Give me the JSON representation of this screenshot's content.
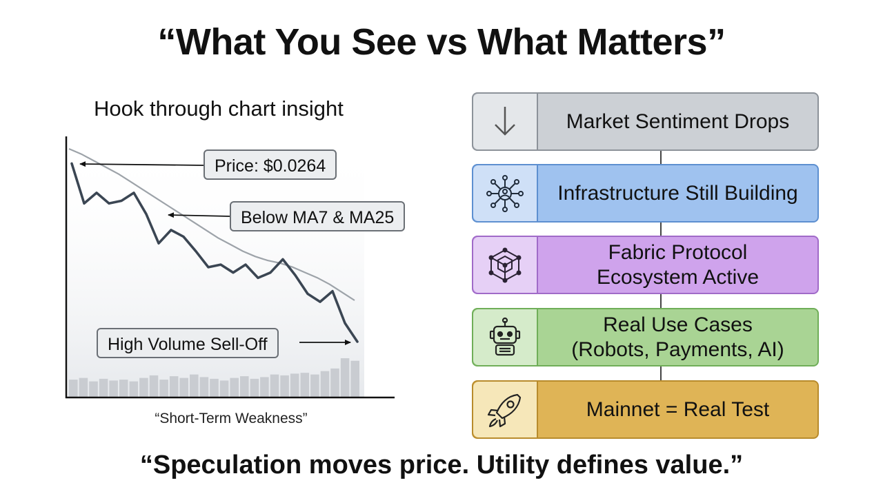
{
  "title": "“What You See vs What Matters”",
  "chart": {
    "heading": "Hook through chart insight",
    "caption": "“Short-Term Weakness”",
    "callouts": {
      "price": "Price: $0.0264",
      "ma": "Below MA7 & MA25",
      "volume": "High Volume Sell-Off"
    }
  },
  "chart_data": {
    "type": "line",
    "title": "",
    "xlabel": "",
    "ylabel": "",
    "series": [
      {
        "values": [
          0.036,
          0.033,
          0.0338,
          0.033,
          0.0332,
          0.0338,
          0.0322,
          0.03,
          0.031,
          0.0305,
          0.0294,
          0.0282,
          0.0284,
          0.0278,
          0.0284,
          0.0274,
          0.0278,
          0.0288,
          0.0276,
          0.0262,
          0.0256,
          0.0264,
          0.024,
          0.0226
        ]
      },
      {
        "values": [
          0.0368,
          0.0364,
          0.0359,
          0.0354,
          0.0349,
          0.0343,
          0.0337,
          0.0331,
          0.0325,
          0.0319,
          0.0313,
          0.0307,
          0.0301,
          0.0296,
          0.0291,
          0.0287,
          0.0284,
          0.0282,
          0.0279,
          0.0275,
          0.0271,
          0.0266,
          0.026,
          0.0254
        ]
      }
    ],
    "volume": [
      20,
      22,
      18,
      21,
      19,
      20,
      18,
      22,
      25,
      20,
      24,
      22,
      26,
      23,
      21,
      19,
      22,
      24,
      21,
      23,
      26,
      25,
      27,
      28,
      26,
      30,
      33,
      45,
      42
    ],
    "grid": false,
    "legend": "none"
  },
  "steps": [
    {
      "label": "Market Sentiment Drops",
      "icon": "arrow-down-icon",
      "fill": "#ccd0d5",
      "icon_fill": "#e4e7ea",
      "border": "#8c9299"
    },
    {
      "label": "Infrastructure Still Building",
      "icon": "network-icon",
      "fill": "#9fc2ef",
      "icon_fill": "#cfe0f7",
      "border": "#5d8fd0"
    },
    {
      "label_line1": "Fabric Protocol",
      "label_line2": "Ecosystem Active",
      "icon": "cube-network-icon",
      "fill": "#cfa3ec",
      "icon_fill": "#e6d0f6",
      "border": "#a06ac8"
    },
    {
      "label_line1": "Real Use Cases",
      "label_line2": "(Robots, Payments, AI)",
      "icon": "robot-icon",
      "fill": "#a9d494",
      "icon_fill": "#d5ebca",
      "border": "#6fae58"
    },
    {
      "label": "Mainnet = Real Test",
      "icon": "rocket-icon",
      "fill": "#dfb456",
      "icon_fill": "#f6e7b9",
      "border": "#b88b2c"
    }
  ],
  "quote": {
    "part1": "“Speculation moves price. ",
    "emphasis": "Utility",
    "part2": " defines value.”"
  }
}
